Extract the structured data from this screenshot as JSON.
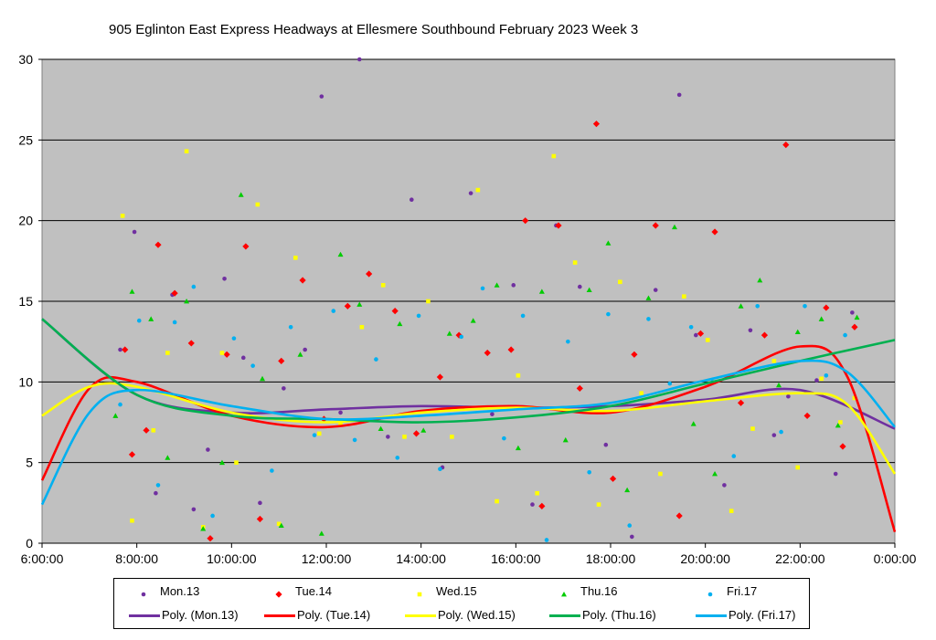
{
  "chart_data": {
    "type": "scatter",
    "title": "905 Eglinton East Express Headways at Ellesmere Southbound February 2023  Week 3",
    "xlabel": "",
    "ylabel": "",
    "x_unit": "hours",
    "xlim": [
      6,
      24
    ],
    "ylim": [
      0,
      30
    ],
    "x_tick_labels": [
      "6:00:00",
      "8:00:00",
      "10:00:00",
      "12:00:00",
      "14:00:00",
      "16:00:00",
      "18:00:00",
      "20:00:00",
      "22:00:00",
      "0:00:00"
    ],
    "y_tick_labels": [
      "0",
      "5",
      "10",
      "15",
      "20",
      "25",
      "30"
    ],
    "grid": "horizontal",
    "legend_position": "bottom",
    "plot_background": "#c0c0c0",
    "series": [
      {
        "name": "Mon.13",
        "marker": "circle",
        "color": "#7030a0",
        "x": [
          7.65,
          7.95,
          8.4,
          8.75,
          9.2,
          9.5,
          9.85,
          10.25,
          10.6,
          11.1,
          11.55,
          11.9,
          12.3,
          12.7,
          13.3,
          13.8,
          14.45,
          15.05,
          15.5,
          15.95,
          16.35,
          16.85,
          17.35,
          17.9,
          18.45,
          18.95,
          19.45,
          19.8,
          20.4,
          20.95,
          21.45,
          21.75,
          22.35,
          22.75,
          23.1
        ],
        "y": [
          12,
          19.3,
          3.1,
          15.4,
          2.1,
          5.8,
          16.4,
          11.5,
          2.5,
          9.6,
          12,
          27.7,
          8.1,
          30,
          6.6,
          21.3,
          4.7,
          21.7,
          8,
          16,
          2.4,
          19.7,
          15.9,
          6.1,
          0.4,
          15.7,
          27.8,
          12.9,
          3.6,
          13.2,
          6.7,
          9.1,
          10.1,
          4.3,
          14.3
        ]
      },
      {
        "name": "Tue.14",
        "marker": "diamond",
        "color": "#ff0000",
        "x": [
          7.75,
          7.9,
          8.2,
          8.45,
          8.8,
          9.15,
          9.55,
          9.9,
          10.3,
          10.6,
          11.05,
          11.5,
          11.95,
          12.45,
          12.9,
          13.45,
          13.9,
          14.4,
          14.8,
          15.4,
          15.9,
          16.2,
          16.55,
          16.9,
          17.35,
          17.7,
          18.05,
          18.5,
          18.95,
          19.45,
          19.9,
          20.2,
          20.75,
          21.25,
          21.7,
          22.15,
          22.55,
          22.9,
          23.15
        ],
        "y": [
          12,
          5.5,
          7,
          18.5,
          15.5,
          12.4,
          0.3,
          11.7,
          18.4,
          1.5,
          11.3,
          16.3,
          7.7,
          14.7,
          16.7,
          14.4,
          6.8,
          10.3,
          12.9,
          11.8,
          12,
          20,
          2.3,
          19.7,
          9.6,
          26,
          4,
          11.7,
          19.7,
          1.7,
          13,
          19.3,
          8.7,
          12.9,
          24.7,
          7.9,
          14.6,
          6,
          13.4
        ]
      },
      {
        "name": "Wed.15",
        "marker": "square",
        "color": "#ffff00",
        "x": [
          7.7,
          7.9,
          8.35,
          8.65,
          9.05,
          9.4,
          9.8,
          10.1,
          10.55,
          11.0,
          11.35,
          11.85,
          12.3,
          12.75,
          13.2,
          13.65,
          14.15,
          14.65,
          15.2,
          15.6,
          16.05,
          16.45,
          16.8,
          17.25,
          17.75,
          18.2,
          18.65,
          19.05,
          19.55,
          20.05,
          20.55,
          21.0,
          21.45,
          21.95,
          22.45,
          22.85,
          23.15
        ],
        "y": [
          20.3,
          1.4,
          7,
          11.8,
          24.3,
          1,
          11.8,
          5,
          21,
          1.2,
          17.7,
          6.8,
          7.4,
          13.4,
          16,
          6.6,
          15,
          6.6,
          21.9,
          2.6,
          10.4,
          3.1,
          24,
          17.4,
          2.4,
          16.2,
          9.3,
          4.3,
          15.3,
          12.6,
          2,
          7.1,
          11.3,
          4.7,
          10.2,
          7.5,
          9
        ]
      },
      {
        "name": "Thu.16",
        "marker": "triangle",
        "color": "#00cc00",
        "x": [
          7.55,
          7.9,
          8.3,
          8.65,
          9.05,
          9.4,
          9.8,
          10.2,
          10.65,
          11.05,
          11.45,
          11.9,
          12.3,
          12.7,
          13.15,
          13.55,
          14.05,
          14.6,
          15.1,
          15.6,
          16.05,
          16.55,
          17.05,
          17.55,
          17.95,
          18.35,
          18.8,
          19.35,
          19.75,
          20.2,
          20.75,
          21.15,
          21.55,
          21.95,
          22.45,
          22.8,
          23.2
        ],
        "y": [
          7.9,
          15.6,
          13.9,
          5.3,
          15,
          0.9,
          5,
          21.6,
          10.2,
          1.1,
          11.7,
          0.6,
          17.9,
          14.8,
          7.1,
          13.6,
          7,
          13,
          13.8,
          16,
          5.9,
          15.6,
          6.4,
          15.7,
          18.6,
          3.3,
          15.2,
          19.6,
          7.4,
          4.3,
          14.7,
          16.3,
          9.8,
          13.1,
          13.9,
          7.3,
          14
        ]
      },
      {
        "name": "Fri.17",
        "marker": "circle",
        "color": "#00b0f0",
        "x": [
          7.65,
          8.05,
          8.45,
          8.8,
          9.2,
          9.6,
          10.05,
          10.45,
          10.85,
          11.25,
          11.75,
          12.15,
          12.6,
          13.05,
          13.5,
          13.95,
          14.4,
          14.85,
          15.3,
          15.75,
          16.15,
          16.65,
          17.1,
          17.55,
          17.95,
          18.4,
          18.8,
          19.25,
          19.7,
          20.15,
          20.6,
          21.1,
          21.6,
          22.1,
          22.55,
          22.95
        ],
        "y": [
          8.6,
          13.8,
          3.6,
          13.7,
          15.9,
          1.7,
          12.7,
          11,
          4.5,
          13.4,
          6.7,
          14.4,
          6.4,
          11.4,
          5.3,
          14.1,
          4.6,
          12.8,
          15.8,
          6.5,
          14.1,
          0.2,
          12.5,
          4.4,
          14.2,
          1.1,
          13.9,
          9.9,
          13.4,
          10,
          5.4,
          14.7,
          6.9,
          14.7,
          10.4,
          12.9
        ]
      }
    ],
    "trendlines": [
      {
        "name": "Poly. (Mon.13)",
        "color": "#7030a0",
        "x": [
          6,
          8,
          10,
          12,
          14,
          16,
          18,
          20,
          22,
          24
        ],
        "y": [
          13.9,
          9.2,
          8.1,
          8.3,
          8.5,
          8.4,
          8.5,
          8.9,
          9.5,
          7.1
        ]
      },
      {
        "name": "Poly. (Tue.14)",
        "color": "#ff0000",
        "x": [
          6,
          7,
          8,
          10,
          12,
          14,
          16,
          18,
          20,
          22,
          23,
          24
        ],
        "y": [
          3.9,
          9.6,
          10,
          7.9,
          7.2,
          8.2,
          8.5,
          8.1,
          9.7,
          12.2,
          10.3,
          0.7
        ]
      },
      {
        "name": "Poly. (Wed.15)",
        "color": "#ffff00",
        "x": [
          6,
          7,
          8,
          10,
          12,
          14,
          16,
          18,
          20,
          22,
          23,
          24
        ],
        "y": [
          7.9,
          9.7,
          9.7,
          8.1,
          7.5,
          8.1,
          8.4,
          8.2,
          8.8,
          9.3,
          8.6,
          4.3
        ]
      },
      {
        "name": "Poly. (Thu.16)",
        "color": "#00b050",
        "x": [
          6,
          8,
          10,
          12,
          14,
          16,
          18,
          20,
          22,
          24
        ],
        "y": [
          13.9,
          9.2,
          7.9,
          7.7,
          7.5,
          7.8,
          8.5,
          9.9,
          11.3,
          12.6
        ]
      },
      {
        "name": "Poly. (Fri.17)",
        "color": "#00b0f0",
        "x": [
          6,
          7,
          8,
          10,
          12,
          14,
          16,
          18,
          20,
          22,
          23,
          24
        ],
        "y": [
          2.4,
          8.1,
          9.5,
          8.5,
          7.7,
          7.9,
          8.3,
          8.7,
          10.1,
          11.3,
          10.6,
          7.2
        ]
      }
    ]
  }
}
